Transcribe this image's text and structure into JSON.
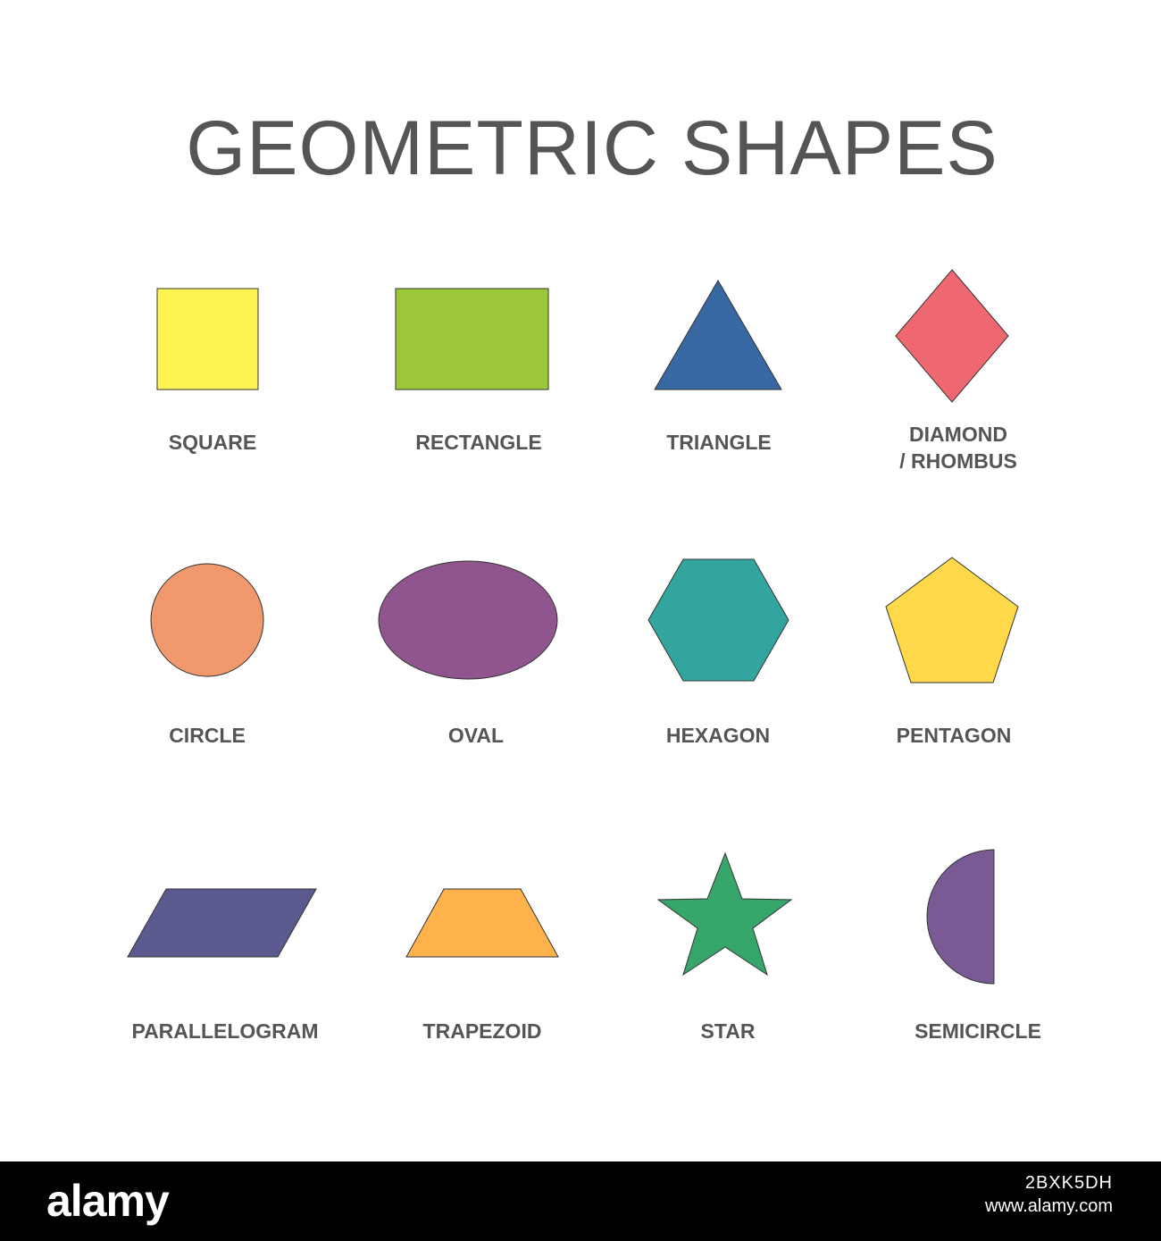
{
  "title": "GEOMETRIC SHAPES",
  "colors": {
    "text": "#555555",
    "outline": "#333333",
    "background": "#ffffff",
    "footer": "#000000"
  },
  "shapes": [
    {
      "label": "SQUARE",
      "color": "#FFF44F"
    },
    {
      "label": "RECTANGLE",
      "color": "#9DC73B"
    },
    {
      "label": "TRIANGLE",
      "color": "#3768A3"
    },
    {
      "label": [
        "DIAMOND",
        "/ RHOMBUS"
      ],
      "color": "#EF6871"
    },
    {
      "label": "CIRCLE",
      "color": "#F1986D"
    },
    {
      "label": "OVAL",
      "color": "#90558E"
    },
    {
      "label": "HEXAGON",
      "color": "#33A59F"
    },
    {
      "label": "PENTAGON",
      "color": "#FFD94A"
    },
    {
      "label": "PARALLELOGRAM",
      "color": "#5A5A8E"
    },
    {
      "label": "TRAPEZOID",
      "color": "#FFB24B"
    },
    {
      "label": "STAR",
      "color": "#36A66A"
    },
    {
      "label": "SEMICIRCLE",
      "color": "#7A5A95"
    }
  ],
  "footer": {
    "logo": "alamy",
    "image_id": "2BXK5DH",
    "site": "www.alamy.com"
  }
}
